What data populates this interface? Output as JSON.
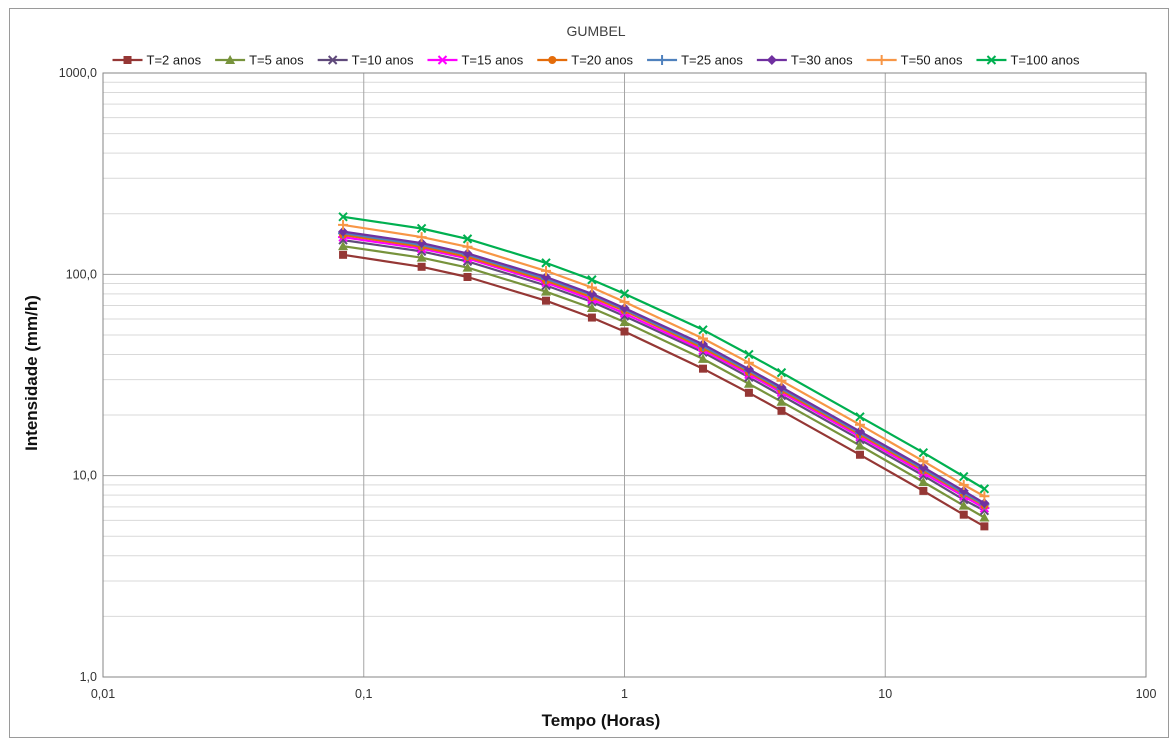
{
  "chart_data": {
    "type": "line",
    "title": "GUMBEL",
    "xlabel": "Tempo (Horas)",
    "ylabel": "Intensidade (mm/h)",
    "x_scale": "log",
    "y_scale": "log",
    "xlim": [
      0.01,
      100
    ],
    "ylim": [
      1,
      1000
    ],
    "x_tick_labels": [
      "0,01",
      "0,1",
      "1",
      "10",
      "100"
    ],
    "y_tick_labels": [
      "1,0",
      "10,0",
      "100,0",
      "1000,0"
    ],
    "grid": true,
    "legend_position": "top",
    "x": [
      0.0833,
      0.1667,
      0.25,
      0.5,
      0.75,
      1,
      2,
      3,
      4,
      8,
      14,
      20,
      24
    ],
    "series": [
      {
        "name": "T=2 anos",
        "color": "#953735",
        "marker": "square",
        "values": [
          125,
          109,
          97,
          74,
          61,
          52,
          34,
          25.8,
          21,
          12.7,
          8.4,
          6.4,
          5.6
        ]
      },
      {
        "name": "T=5 anos",
        "color": "#77933c",
        "marker": "triangle",
        "values": [
          138,
          121,
          108,
          82,
          68,
          58,
          38,
          28.6,
          23.3,
          14.1,
          9.3,
          7.1,
          6.2
        ]
      },
      {
        "name": "T=10 anos",
        "color": "#604a7b",
        "marker": "x",
        "values": [
          148,
          130,
          116,
          88,
          73,
          62,
          41,
          30.8,
          25,
          15.1,
          10,
          7.6,
          6.7
        ]
      },
      {
        "name": "T=15 anos",
        "color": "#ff00ff",
        "marker": "asterisk",
        "values": [
          153,
          134,
          120,
          91,
          75,
          64,
          42,
          31.8,
          25.9,
          15.6,
          10.3,
          7.9,
          6.9
        ]
      },
      {
        "name": "T=20 anos",
        "color": "#e46c0a",
        "marker": "circle",
        "values": [
          157,
          137,
          122,
          93,
          77,
          66,
          43,
          32.6,
          26.5,
          16,
          10.6,
          8.1,
          7.1
        ]
      },
      {
        "name": "T=25 anos",
        "color": "#4f81bd",
        "marker": "plus",
        "values": [
          160,
          140,
          125,
          95,
          79,
          67,
          44,
          33.2,
          27,
          16.3,
          10.8,
          8.2,
          7.2
        ]
      },
      {
        "name": "T=30 anos",
        "color": "#7030a0",
        "marker": "diamond",
        "values": [
          163,
          143,
          127,
          97,
          80,
          68,
          45,
          33.8,
          27.5,
          16.6,
          11,
          8.4,
          7.3
        ]
      },
      {
        "name": "T=50 anos",
        "color": "#f79646",
        "marker": "plus",
        "values": [
          176,
          153,
          137,
          104,
          86,
          73,
          48,
          36.4,
          29.6,
          17.9,
          11.8,
          9,
          7.9
        ]
      },
      {
        "name": "T=100 anos",
        "color": "#00b050",
        "marker": "x",
        "values": [
          193,
          169,
          150,
          114,
          94,
          80,
          53,
          40,
          32.5,
          19.6,
          13,
          9.9,
          8.6
        ]
      }
    ]
  }
}
